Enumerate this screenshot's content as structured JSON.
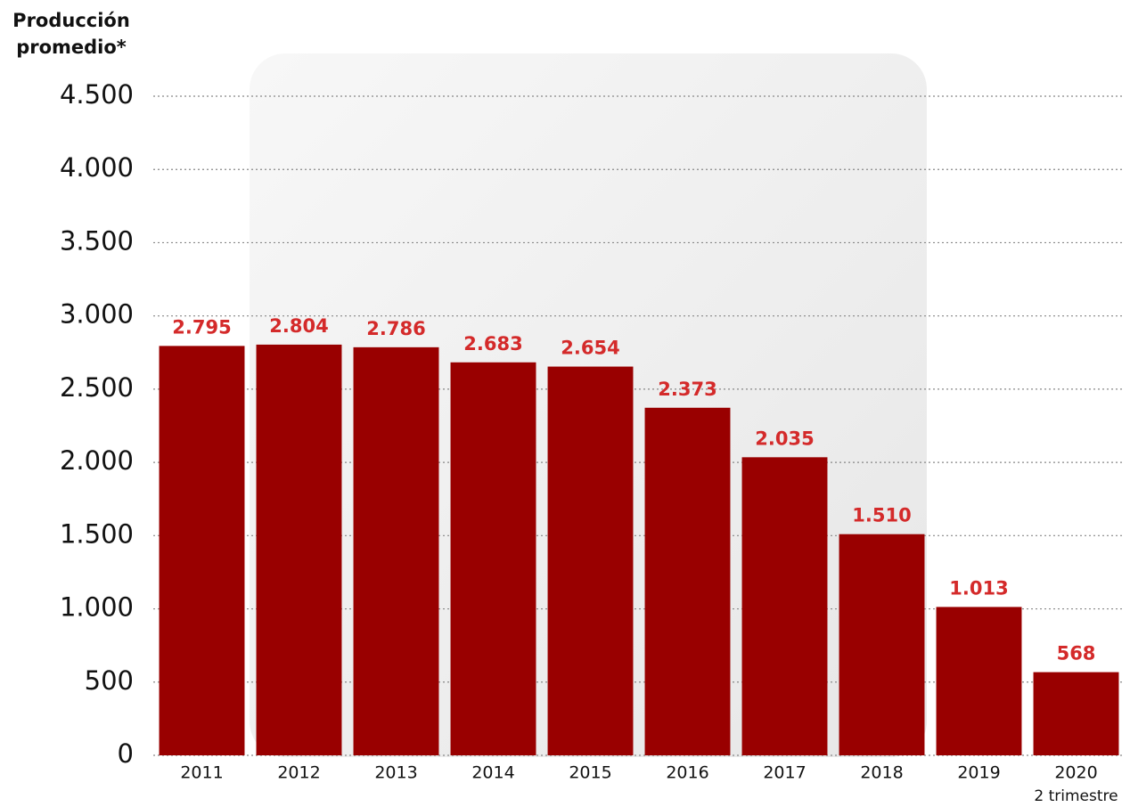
{
  "chart_data": {
    "type": "bar",
    "y_label": "Producción promedio*",
    "categories": [
      "2011",
      "2012",
      "2013",
      "2014",
      "2015",
      "2016",
      "2017",
      "2018",
      "2019",
      "2020"
    ],
    "category_note": "2 trimestre",
    "values": [
      2795,
      2804,
      2786,
      2683,
      2654,
      2373,
      2035,
      1510,
      1013,
      568
    ],
    "value_labels": [
      "2.795",
      "2.804",
      "2.786",
      "2.683",
      "2.654",
      "2.373",
      "2.035",
      "1.510",
      "1.013",
      "568"
    ],
    "color": "#990000",
    "label_color": "#d42a2a",
    "ylim": [
      0,
      4500
    ],
    "yticks": [
      0,
      500,
      {
        "value": 1000,
        "label": "1.000"
      },
      {
        "value": 1500,
        "label": "1.500"
      },
      {
        "value": 2000,
        "label": "2.000"
      },
      {
        "value": 2500,
        "label": "2.500"
      },
      {
        "value": 3000,
        "label": "3.000"
      },
      {
        "value": 3500,
        "label": "3.500"
      },
      {
        "value": 4000,
        "label": "4.000"
      },
      {
        "value": 4500,
        "label": "4.500"
      }
    ],
    "grid": true
  }
}
